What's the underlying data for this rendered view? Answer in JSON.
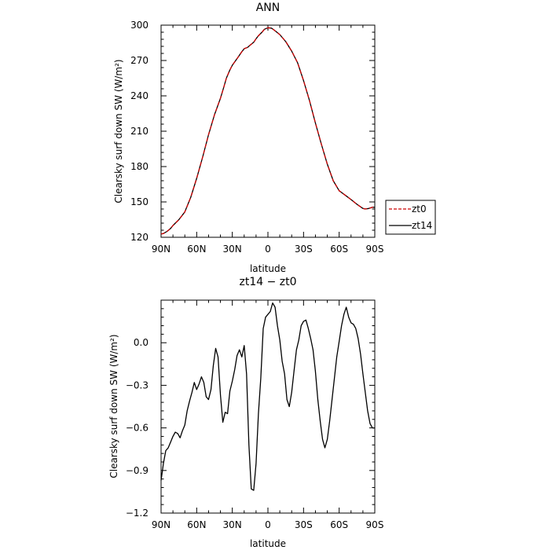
{
  "chart_data": [
    {
      "type": "line",
      "title": "ANN",
      "xlabel": "latitude",
      "ylabel": "Clearsky surf down SW (W/m²)",
      "xlim": [
        90,
        -90
      ],
      "ylim": [
        120,
        300
      ],
      "x_ticks": [
        90,
        60,
        30,
        0,
        -30,
        -60,
        -90
      ],
      "x_tick_labels": [
        "90N",
        "60N",
        "30N",
        "0",
        "30S",
        "60S",
        "90S"
      ],
      "y_ticks": [
        120,
        150,
        180,
        210,
        240,
        270,
        300
      ],
      "y_tick_labels": [
        "120",
        "150",
        "180",
        "210",
        "240",
        "270",
        "300"
      ],
      "legend": {
        "placement": "right",
        "entries": [
          "zt0",
          "zt14"
        ]
      },
      "series": [
        {
          "name": "zt0",
          "color": "#cc0000",
          "dash": "dashed",
          "x": [
            90,
            88,
            85,
            82,
            80,
            75,
            70,
            65,
            60,
            55,
            50,
            45,
            40,
            37,
            35,
            32,
            30,
            25,
            22,
            20,
            17,
            15,
            12,
            10,
            8,
            5,
            3,
            0,
            -3,
            -5,
            -10,
            -15,
            -20,
            -25,
            -30,
            -35,
            -40,
            -45,
            -50,
            -55,
            -60,
            -62,
            -65,
            -70,
            -75,
            -80,
            -82,
            -85,
            -88,
            -90
          ],
          "values": [
            122.8,
            123.2,
            125,
            127.5,
            130,
            135,
            141.5,
            154,
            170,
            188,
            207,
            224,
            238,
            248,
            255,
            262,
            266,
            273,
            277.5,
            280,
            281.2,
            283,
            285.5,
            288.5,
            291,
            294,
            296.5,
            297.8,
            297.5,
            296,
            292,
            286,
            278,
            268,
            253,
            236,
            217,
            199,
            182,
            168,
            159.5,
            158,
            155.8,
            152,
            148,
            144.5,
            144,
            144.5,
            145.5,
            145.5
          ]
        },
        {
          "name": "zt14",
          "color": "#000000",
          "dash": "solid",
          "x": [
            90,
            88,
            85,
            82,
            80,
            75,
            70,
            65,
            60,
            55,
            50,
            45,
            40,
            37,
            35,
            32,
            30,
            25,
            22,
            20,
            17,
            15,
            12,
            10,
            8,
            5,
            3,
            0,
            -3,
            -5,
            -10,
            -15,
            -20,
            -25,
            -30,
            -35,
            -40,
            -45,
            -50,
            -55,
            -60,
            -62,
            -65,
            -70,
            -75,
            -80,
            -82,
            -85,
            -88,
            -90
          ],
          "values": [
            122.8,
            123.2,
            125,
            127.5,
            130,
            135,
            141.5,
            154,
            170,
            188,
            207,
            224,
            238,
            248,
            255,
            262,
            266,
            273,
            277.5,
            280,
            281.2,
            283,
            285.5,
            288.5,
            291,
            294,
            296.5,
            297.8,
            297.5,
            296,
            292,
            286,
            278,
            268,
            253,
            236,
            217,
            199,
            182,
            168,
            159.5,
            158,
            155.8,
            152,
            148,
            144.5,
            144,
            144.5,
            145.5,
            145.5
          ]
        }
      ]
    },
    {
      "type": "line",
      "title": "zt14 − zt0",
      "xlabel": "latitude",
      "ylabel": "Clearsky surf down SW (W/m²)",
      "xlim": [
        90,
        -90
      ],
      "ylim": [
        -1.2,
        0.3
      ],
      "x_ticks": [
        90,
        60,
        30,
        0,
        -30,
        -60,
        -90
      ],
      "x_tick_labels": [
        "90N",
        "60N",
        "30N",
        "0",
        "30S",
        "60S",
        "90S"
      ],
      "y_ticks": [
        -1.2,
        -0.9,
        -0.6,
        -0.3,
        0.0
      ],
      "y_tick_labels": [
        "−1.2",
        "−0.9",
        "−0.6",
        "−0.3",
        "0.0"
      ],
      "series": [
        {
          "name": "zt14",
          "color": "#000000",
          "dash": "solid",
          "x": [
            90,
            88,
            86,
            84,
            82,
            80,
            78,
            76,
            74,
            72,
            70,
            68,
            66,
            64,
            62,
            60,
            58,
            56,
            54,
            52,
            50,
            48,
            46,
            44,
            42,
            40,
            38,
            36,
            34,
            32,
            30,
            28,
            26,
            24,
            22,
            20,
            18,
            16,
            14,
            12,
            10,
            8,
            6,
            4,
            2,
            0,
            -2,
            -4,
            -6,
            -8,
            -10,
            -12,
            -14,
            -16,
            -18,
            -20,
            -22,
            -24,
            -26,
            -28,
            -30,
            -32,
            -34,
            -36,
            -38,
            -40,
            -42,
            -44,
            -46,
            -48,
            -50,
            -52,
            -54,
            -56,
            -58,
            -60,
            -62,
            -64,
            -66,
            -68,
            -70,
            -72,
            -74,
            -76,
            -78,
            -80,
            -82,
            -84,
            -86,
            -88,
            -90
          ],
          "values": [
            -0.97,
            -0.85,
            -0.76,
            -0.74,
            -0.7,
            -0.66,
            -0.63,
            -0.64,
            -0.67,
            -0.62,
            -0.58,
            -0.48,
            -0.41,
            -0.35,
            -0.28,
            -0.33,
            -0.29,
            -0.24,
            -0.28,
            -0.38,
            -0.4,
            -0.33,
            -0.16,
            -0.04,
            -0.1,
            -0.37,
            -0.56,
            -0.49,
            -0.5,
            -0.34,
            -0.27,
            -0.19,
            -0.09,
            -0.05,
            -0.1,
            -0.02,
            -0.22,
            -0.72,
            -1.03,
            -1.04,
            -0.85,
            -0.5,
            -0.25,
            0.1,
            0.18,
            0.2,
            0.22,
            0.28,
            0.25,
            0.12,
            0.02,
            -0.13,
            -0.22,
            -0.4,
            -0.45,
            -0.35,
            -0.2,
            -0.05,
            0.02,
            0.12,
            0.15,
            0.16,
            0.1,
            0.03,
            -0.05,
            -0.2,
            -0.4,
            -0.55,
            -0.68,
            -0.74,
            -0.68,
            -0.55,
            -0.4,
            -0.25,
            -0.1,
            0.01,
            0.12,
            0.2,
            0.25,
            0.18,
            0.14,
            0.13,
            0.1,
            0.03,
            -0.08,
            -0.22,
            -0.35,
            -0.48,
            -0.57,
            -0.6,
            -0.6
          ]
        }
      ]
    }
  ]
}
